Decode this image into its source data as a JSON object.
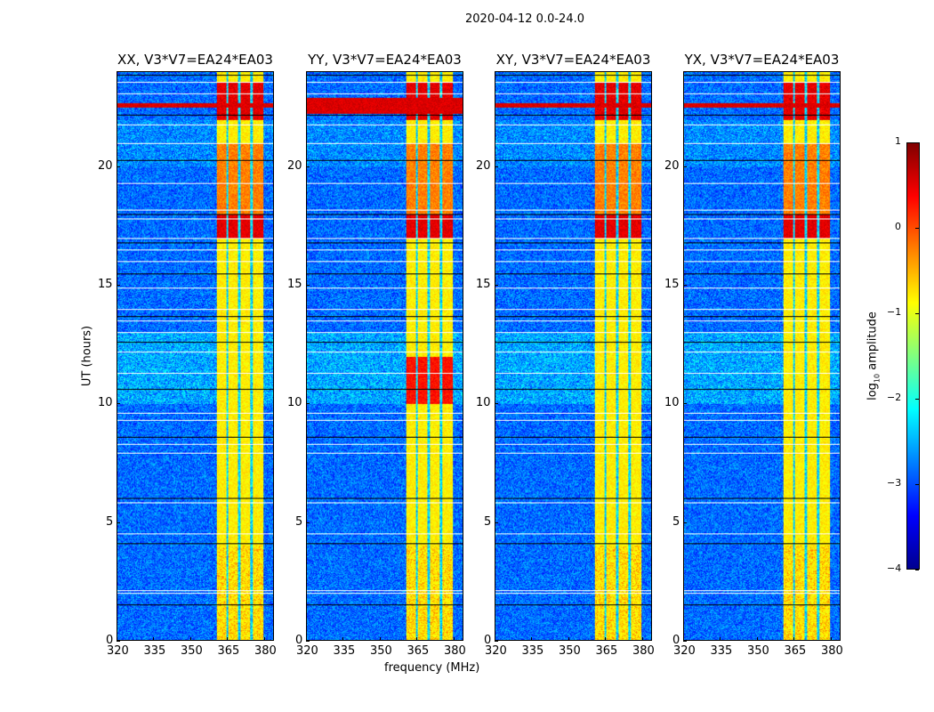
{
  "chart_data": {
    "type": "heatmap",
    "title": "2020-04-12 0.0-24.0",
    "xlabel": "frequency (MHz)",
    "ylabel": "UT (hours)",
    "xlim": [
      320,
      384
    ],
    "ylim": [
      0,
      24
    ],
    "xticks": [
      "320",
      "335",
      "350",
      "365",
      "380"
    ],
    "yticks": [
      "0",
      "5",
      "10",
      "15",
      "20"
    ],
    "panels": [
      {
        "title": "XX, V3*V7=EA24*EA03"
      },
      {
        "title": "YY, V3*V7=EA24*EA03"
      },
      {
        "title": "XY, V3*V7=EA24*EA03"
      },
      {
        "title": "YX, V3*V7=EA24*EA03"
      }
    ],
    "colorbar": {
      "label_prefix": "log",
      "label_sub": "10",
      "label_suffix": " amplitude",
      "range": [
        -4,
        1
      ],
      "ticks": [
        "1",
        "0",
        "−1",
        "−2",
        "−3",
        "−4"
      ],
      "colormap": "jet"
    },
    "rfi_band_mhz": [
      360.5,
      380
    ],
    "strong_rfi_time_hours": 22.6,
    "flagged_times_hours": [
      1.5,
      2.0,
      2.1,
      4.1,
      4.5,
      5.8,
      6.0,
      7.9,
      8.3,
      8.6,
      9.3,
      9.6,
      10.6,
      11.3,
      12.2,
      12.6,
      13.0,
      13.5,
      13.7,
      14.0,
      14.9,
      15.5,
      16.0,
      16.5,
      16.8,
      17.0,
      17.8,
      18.0,
      18.2,
      19.3,
      20.3,
      21.0,
      21.8,
      22.2,
      23.1,
      23.6,
      23.9
    ]
  }
}
